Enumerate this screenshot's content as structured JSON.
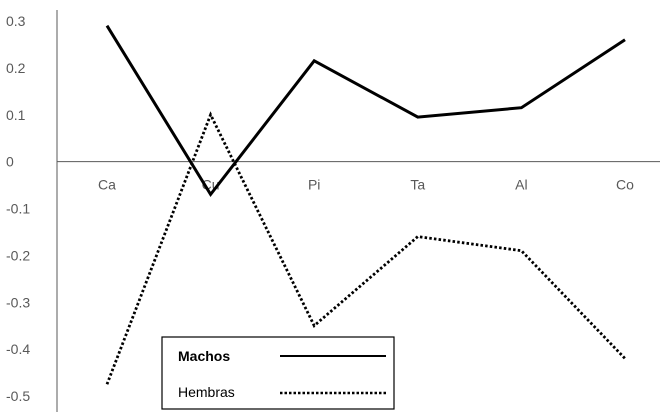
{
  "chart_data": {
    "type": "line",
    "categories": [
      "Ca",
      "Cu",
      "Pi",
      "Ta",
      "Al",
      "Co"
    ],
    "ylim": [
      -0.5,
      0.3
    ],
    "yticks": [
      0.3,
      0.2,
      0.1,
      0,
      -0.1,
      -0.2,
      -0.3,
      -0.4,
      -0.5
    ],
    "ytick_labels": [
      "0.3",
      "0.2",
      "0.1",
      "0",
      "-0.1",
      "-0.2",
      "-0.3",
      "-0.4",
      "-0.5"
    ],
    "grid": false,
    "legend_position": "bottom-left",
    "series": [
      {
        "name": "Machos",
        "style": "solid",
        "color": "#000000",
        "values": [
          0.29,
          -0.07,
          0.215,
          0.095,
          0.115,
          0.26
        ]
      },
      {
        "name": "Hembras",
        "style": "dotted",
        "color": "#000000",
        "values": [
          -0.475,
          0.1,
          -0.35,
          -0.16,
          -0.19,
          -0.42
        ]
      }
    ]
  }
}
